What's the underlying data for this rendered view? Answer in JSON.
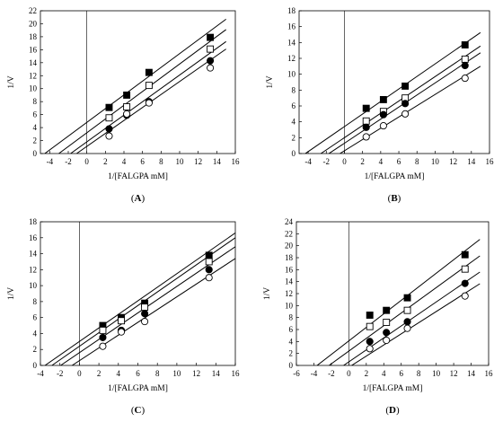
{
  "figure": {
    "panel_order": [
      "A",
      "B",
      "C",
      "D"
    ]
  },
  "chart_data": [
    {
      "id": "A",
      "type": "scatter",
      "panel_label": "A",
      "title": "",
      "xlabel": "1/[FALGPA mM]",
      "ylabel": "1/V",
      "xlim": [
        -5,
        16
      ],
      "ylim": [
        0,
        22
      ],
      "xticks": [
        -4,
        -2,
        0,
        2,
        4,
        6,
        8,
        10,
        12,
        14,
        16
      ],
      "yticks": [
        0,
        2,
        4,
        6,
        8,
        10,
        12,
        14,
        16,
        18,
        20,
        22
      ],
      "grid": false,
      "series": [
        {
          "marker": "filled-square",
          "x": [
            2.4,
            4.3,
            6.7,
            13.3
          ],
          "y": [
            7.1,
            9.0,
            12.5,
            17.9
          ],
          "fit": {
            "slope": 1.06,
            "intercept": 4.8,
            "x_range": [
              -4.53,
              15
            ]
          }
        },
        {
          "marker": "open-square",
          "x": [
            2.4,
            4.3,
            6.7,
            13.3
          ],
          "y": [
            5.5,
            7.2,
            10.5,
            16.1
          ],
          "fit": {
            "slope": 1.06,
            "intercept": 3.2,
            "x_range": [
              -3.02,
              15
            ]
          }
        },
        {
          "marker": "filled-circle",
          "x": [
            2.4,
            4.3,
            6.7,
            13.3
          ],
          "y": [
            3.8,
            5.9,
            8.0,
            14.3
          ],
          "fit": {
            "slope": 1.03,
            "intercept": 1.8,
            "x_range": [
              -1.75,
              15
            ]
          }
        },
        {
          "marker": "open-circle",
          "x": [
            2.4,
            4.3,
            6.7,
            13.3
          ],
          "y": [
            2.7,
            6.1,
            7.8,
            13.2
          ],
          "fit": {
            "slope": 1.0,
            "intercept": 1.1,
            "x_range": [
              -1.1,
              15
            ]
          }
        }
      ]
    },
    {
      "id": "B",
      "type": "scatter",
      "panel_label": "B",
      "title": "",
      "xlabel": "1/[FALGPA mM]",
      "ylabel": "1/V",
      "xlim": [
        -5,
        16
      ],
      "ylim": [
        0,
        18
      ],
      "xticks": [
        -4,
        -2,
        0,
        2,
        4,
        6,
        8,
        10,
        12,
        14,
        16
      ],
      "yticks": [
        0,
        2,
        4,
        6,
        8,
        10,
        12,
        14,
        16,
        18
      ],
      "grid": false,
      "series": [
        {
          "marker": "filled-square",
          "x": [
            2.4,
            4.3,
            6.7,
            13.3
          ],
          "y": [
            5.7,
            6.8,
            8.5,
            13.7
          ],
          "fit": {
            "slope": 0.79,
            "intercept": 3.4,
            "x_range": [
              -4.3,
              15
            ]
          }
        },
        {
          "marker": "open-square",
          "x": [
            2.4,
            4.3,
            6.7,
            13.3
          ],
          "y": [
            4.1,
            5.3,
            7.0,
            11.9
          ],
          "fit": {
            "slope": 0.77,
            "intercept": 2.0,
            "x_range": [
              -2.6,
              15
            ]
          }
        },
        {
          "marker": "filled-circle",
          "x": [
            2.4,
            4.3,
            6.7,
            13.3
          ],
          "y": [
            3.3,
            4.9,
            6.3,
            11.1
          ],
          "fit": {
            "slope": 0.76,
            "intercept": 1.3,
            "x_range": [
              -1.7,
              15
            ]
          }
        },
        {
          "marker": "open-circle",
          "x": [
            2.4,
            4.3,
            6.7,
            13.3
          ],
          "y": [
            2.1,
            3.5,
            5.0,
            9.5
          ],
          "fit": {
            "slope": 0.71,
            "intercept": 0.35,
            "x_range": [
              -0.5,
              15
            ]
          }
        }
      ]
    },
    {
      "id": "C",
      "type": "scatter",
      "panel_label": "C",
      "title": "",
      "xlabel": "1/[FALGPA mM]",
      "ylabel": "1/V",
      "xlim": [
        -4,
        16
      ],
      "ylim": [
        0,
        18
      ],
      "xticks": [
        -4,
        -2,
        0,
        2,
        4,
        6,
        8,
        10,
        12,
        14,
        16
      ],
      "yticks": [
        0,
        2,
        4,
        6,
        8,
        10,
        12,
        14,
        16,
        18
      ],
      "grid": false,
      "series": [
        {
          "marker": "filled-square",
          "x": [
            2.4,
            4.3,
            6.7,
            13.3
          ],
          "y": [
            5.0,
            6.0,
            7.8,
            13.8
          ],
          "fit": {
            "slope": 0.85,
            "intercept": 3.0,
            "x_range": [
              -3.53,
              16
            ]
          }
        },
        {
          "marker": "open-square",
          "x": [
            2.4,
            4.3,
            6.7,
            13.3
          ],
          "y": [
            4.4,
            5.6,
            7.3,
            13.0
          ],
          "fit": {
            "slope": 0.85,
            "intercept": 2.4,
            "x_range": [
              -2.82,
              16
            ]
          }
        },
        {
          "marker": "filled-circle",
          "x": [
            2.4,
            4.3,
            6.7,
            13.3
          ],
          "y": [
            3.5,
            4.4,
            6.5,
            12.0
          ],
          "fit": {
            "slope": 0.83,
            "intercept": 1.6,
            "x_range": [
              -1.93,
              16
            ]
          }
        },
        {
          "marker": "open-circle",
          "x": [
            2.4,
            4.3,
            6.7,
            13.3
          ],
          "y": [
            2.4,
            4.2,
            5.5,
            11.0
          ],
          "fit": {
            "slope": 0.8,
            "intercept": 0.6,
            "x_range": [
              -0.75,
              16
            ]
          }
        }
      ]
    },
    {
      "id": "D",
      "type": "scatter",
      "panel_label": "D",
      "title": "",
      "xlabel": "1/[FALGPA mM]",
      "ylabel": "1/V",
      "xlim": [
        -6,
        16
      ],
      "ylim": [
        0,
        24
      ],
      "xticks": [
        -6,
        -4,
        -2,
        0,
        2,
        4,
        6,
        8,
        10,
        12,
        14,
        16
      ],
      "yticks": [
        0,
        2,
        4,
        6,
        8,
        10,
        12,
        14,
        16,
        18,
        20,
        22,
        24
      ],
      "grid": false,
      "series": [
        {
          "marker": "filled-square",
          "x": [
            2.4,
            4.3,
            6.7,
            13.3
          ],
          "y": [
            8.4,
            9.2,
            11.3,
            18.5
          ],
          "fit": {
            "slope": 1.13,
            "intercept": 4.1,
            "x_range": [
              -3.63,
              15
            ]
          }
        },
        {
          "marker": "open-square",
          "x": [
            2.4,
            4.3,
            6.7,
            13.3
          ],
          "y": [
            6.5,
            7.2,
            9.2,
            16.1
          ],
          "fit": {
            "slope": 1.06,
            "intercept": 2.4,
            "x_range": [
              -2.26,
              15
            ]
          }
        },
        {
          "marker": "filled-circle",
          "x": [
            2.4,
            4.3,
            6.7,
            13.3
          ],
          "y": [
            4.0,
            5.5,
            7.3,
            13.7
          ],
          "fit": {
            "slope": 1.0,
            "intercept": 0.6,
            "x_range": [
              -0.6,
              15
            ]
          }
        },
        {
          "marker": "open-circle",
          "x": [
            2.4,
            4.3,
            6.7,
            13.3
          ],
          "y": [
            2.8,
            4.2,
            6.2,
            11.6
          ],
          "fit": {
            "slope": 0.93,
            "intercept": -0.3,
            "x_range": [
              0.32,
              15
            ]
          }
        }
      ]
    }
  ]
}
